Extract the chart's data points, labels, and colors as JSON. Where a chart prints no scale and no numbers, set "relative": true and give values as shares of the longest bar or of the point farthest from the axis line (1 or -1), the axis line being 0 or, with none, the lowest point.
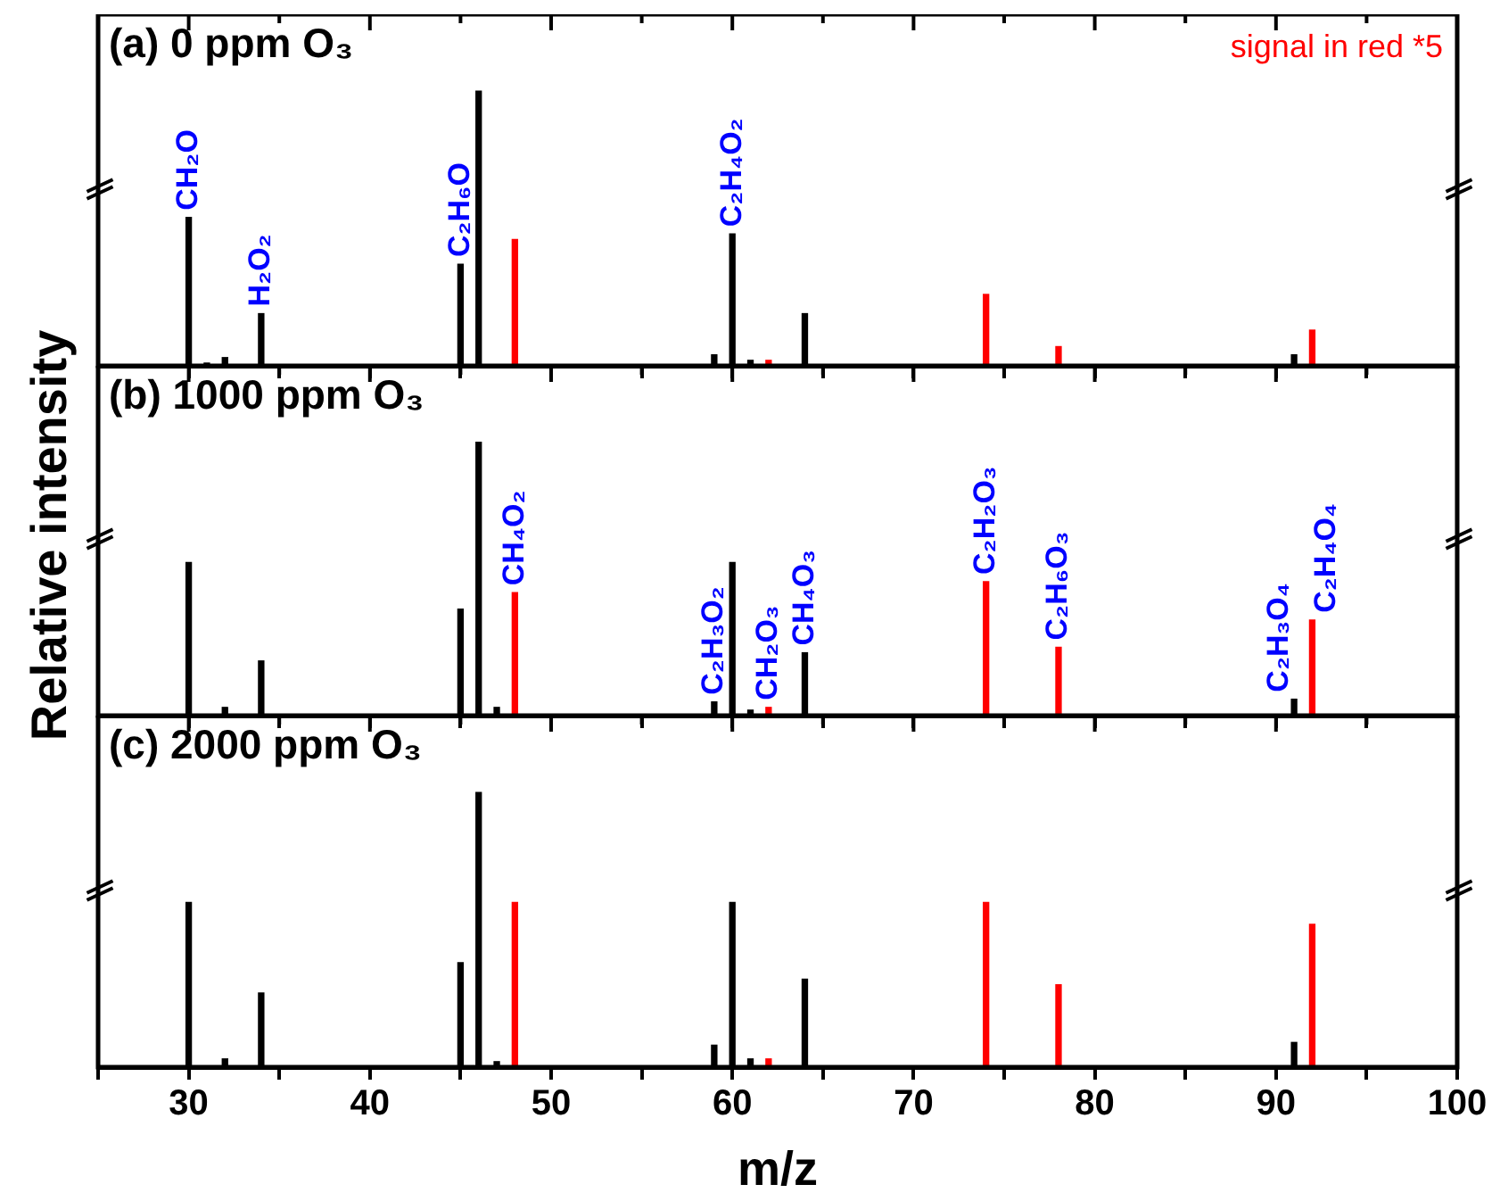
{
  "chart_data": [
    {
      "type": "bar",
      "title": "(a) 0 ppm O₃",
      "relative": true,
      "xlim": [
        25,
        100
      ],
      "xticks": [
        {
          "value": 25,
          "label": null
        },
        30,
        {
          "value": 35,
          "label": null
        },
        40,
        {
          "value": 45,
          "label": null
        },
        50,
        {
          "value": 55,
          "label": null
        },
        60,
        {
          "value": 65,
          "label": null
        },
        70,
        {
          "value": 75,
          "label": null
        },
        80,
        {
          "value": 85,
          "label": null
        },
        90,
        {
          "value": 95,
          "label": null
        },
        100
      ],
      "tick_labels": false,
      "series": [
        {
          "color": "#000000",
          "x": [
            30,
            31,
            32,
            34,
            45,
            46,
            59,
            60,
            61,
            64,
            91
          ],
          "values": [
            0.54,
            0.01,
            0.03,
            0.19,
            0.37,
            1,
            0.04,
            0.48,
            0.02,
            0.19,
            0.04
          ]
        },
        {
          "color": "#ff0000",
          "x": [
            48,
            62,
            74,
            78,
            92
          ],
          "values": [
            0.46,
            0.02,
            0.26,
            0.07,
            0.13
          ]
        }
      ],
      "annotations": [
        "signal in red *5",
        {
          "text": "CH₂O",
          "x": 30,
          "y": 0.54
        },
        {
          "text": "H₂O₂",
          "x": 34,
          "y": 0.19
        },
        {
          "text": "C₂H₆O",
          "x": 45,
          "y": 0.37
        },
        {
          "text": "C₂H₄O₂",
          "x": 60,
          "y": 0.48
        }
      ]
    },
    {
      "type": "bar",
      "title": "(b) 1000 ppm O₃",
      "ylabel": "Relative intensity",
      "relative": true,
      "xlim": [
        25,
        100
      ],
      "xticks": [
        {
          "value": 25,
          "label": null
        },
        30,
        {
          "value": 35,
          "label": null
        },
        40,
        {
          "value": 45,
          "label": null
        },
        50,
        {
          "value": 55,
          "label": null
        },
        60,
        {
          "value": 65,
          "label": null
        },
        70,
        {
          "value": 75,
          "label": null
        },
        80,
        {
          "value": 85,
          "label": null
        },
        90,
        {
          "value": 95,
          "label": null
        },
        100
      ],
      "tick_labels": false,
      "series": [
        {
          "color": "#000000",
          "x": [
            30,
            32,
            34,
            45,
            46,
            47,
            59,
            60,
            61,
            64,
            91
          ],
          "values": [
            0.56,
            0.03,
            0.2,
            0.39,
            1,
            0.03,
            0.05,
            0.56,
            0.02,
            0.23,
            0.06
          ]
        },
        {
          "color": "#ff0000",
          "x": [
            48,
            62,
            74,
            78,
            92
          ],
          "values": [
            0.45,
            0.03,
            0.49,
            0.25,
            0.35
          ]
        }
      ],
      "annotations": [
        {
          "text": "CH₄O₂",
          "x": 48,
          "y": 0.45
        },
        {
          "text": "C₂H₃O₂",
          "x": 59,
          "y": 0.05
        },
        {
          "text": "CH₂O₃",
          "x": 62,
          "y": 0.03
        },
        {
          "text": "CH₄O₃",
          "x": 64,
          "y": 0.23
        },
        {
          "text": "C₂H₂O₃",
          "x": 74,
          "y": 0.49
        },
        {
          "text": "C₂H₆O₃",
          "x": 78,
          "y": 0.25
        },
        {
          "text": "C₂H₃O₄",
          "x": 91,
          "y": 0.06
        },
        {
          "text": "C₂H₄O₄",
          "x": 92,
          "y": 0.35
        }
      ]
    },
    {
      "type": "bar",
      "title": "(c) 2000 ppm O₃",
      "xlabel": "m/z",
      "relative": true,
      "xlim": [
        25,
        100
      ],
      "xticks": [
        {
          "value": 25,
          "label": null
        },
        30,
        {
          "value": 35,
          "label": null
        },
        40,
        {
          "value": 45,
          "label": null
        },
        50,
        {
          "value": 55,
          "label": null
        },
        60,
        {
          "value": 65,
          "label": null
        },
        70,
        {
          "value": 75,
          "label": null
        },
        80,
        {
          "value": 85,
          "label": null
        },
        90,
        {
          "value": 95,
          "label": null
        },
        100
      ],
      "tick_labels": "x",
      "series": [
        {
          "color": "#000000",
          "x": [
            30,
            32,
            34,
            45,
            46,
            47,
            59,
            60,
            61,
            64,
            91
          ],
          "values": [
            0.6,
            0.03,
            0.27,
            0.38,
            1,
            0.02,
            0.08,
            0.6,
            0.03,
            0.32,
            0.09
          ]
        },
        {
          "color": "#ff0000",
          "x": [
            48,
            62,
            74,
            78,
            92
          ],
          "values": [
            0.6,
            0.03,
            0.6,
            0.3,
            0.52
          ]
        }
      ]
    }
  ]
}
